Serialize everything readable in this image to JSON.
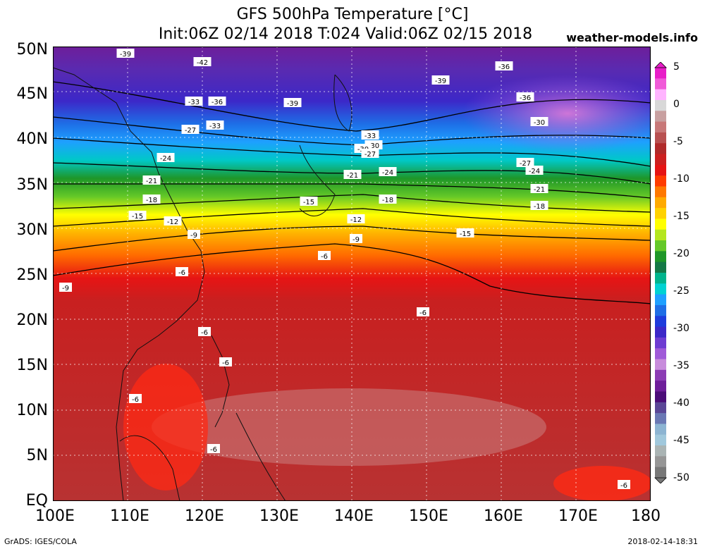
{
  "header": {
    "title": "GFS 500hPa Temperature [°C]",
    "subtitle": "Init:06Z 02/14 2018 T:024 Valid:06Z 02/15 2018",
    "brand": "weather-models.info"
  },
  "footer": {
    "credit": "GrADS: IGES/COLA",
    "timestamp": "2018-02-14-18:31"
  },
  "axes": {
    "lat_labels": [
      "50N",
      "45N",
      "40N",
      "35N",
      "30N",
      "25N",
      "20N",
      "15N",
      "10N",
      "5N",
      "EQ"
    ],
    "lon_labels": [
      "100E",
      "110E",
      "120E",
      "130E",
      "140E",
      "150E",
      "160E",
      "170E",
      "180"
    ]
  },
  "colorbar": {
    "labels": [
      "5",
      "0",
      "-5",
      "-10",
      "-15",
      "-20",
      "-25",
      "-30",
      "-35",
      "-40",
      "-45",
      "-50"
    ],
    "colors": [
      "#e81ec8",
      "#f05ad8",
      "#ffb4ff",
      "#d8d8d8",
      "#c8a0a0",
      "#c87878",
      "#b85050",
      "#b02a2a",
      "#cc2020",
      "#e61414",
      "#ff3c00",
      "#ff7800",
      "#ffaa00",
      "#ffd200",
      "#ffff00",
      "#b4e61e",
      "#64c828",
      "#1e9628",
      "#147846",
      "#00b48c",
      "#00d2d2",
      "#1ea0ff",
      "#1e6ee6",
      "#1e3cdc",
      "#3c28c8",
      "#6e3cd2",
      "#a05ad8",
      "#c88cdc",
      "#8c3cb4",
      "#6e1e9a",
      "#4b0c78",
      "#5a4696",
      "#6a78b4",
      "#8cb4d2",
      "#a0c8dc",
      "#aab4b4",
      "#969696",
      "#787878"
    ]
  },
  "map_data": {
    "region": {
      "lon_min": 100,
      "lon_max": 180,
      "lat_min": 0,
      "lat_max": 50
    },
    "contour_labels": [
      "-42",
      "-39",
      "-39",
      "-39",
      "-36",
      "-36",
      "-36",
      "-33",
      "-33",
      "-33",
      "-30",
      "-30",
      "-30",
      "-27",
      "-27",
      "-27",
      "-24",
      "-24",
      "-24",
      "-21",
      "-21",
      "-21",
      "-18",
      "-18",
      "-18",
      "-15",
      "-15",
      "-15",
      "-12",
      "-12",
      "-9",
      "-9",
      "-9",
      "-6",
      "-6",
      "-6",
      "-6",
      "-6",
      "-6",
      "-6",
      "-6"
    ]
  }
}
